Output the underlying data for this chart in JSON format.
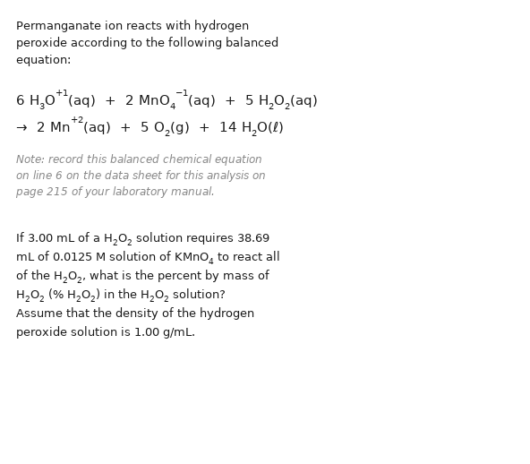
{
  "bg_color": "#ffffff",
  "text_color": "#1a1a1a",
  "note_color": "#888888",
  "fig_width": 5.92,
  "fig_height": 5.18,
  "dpi": 100
}
